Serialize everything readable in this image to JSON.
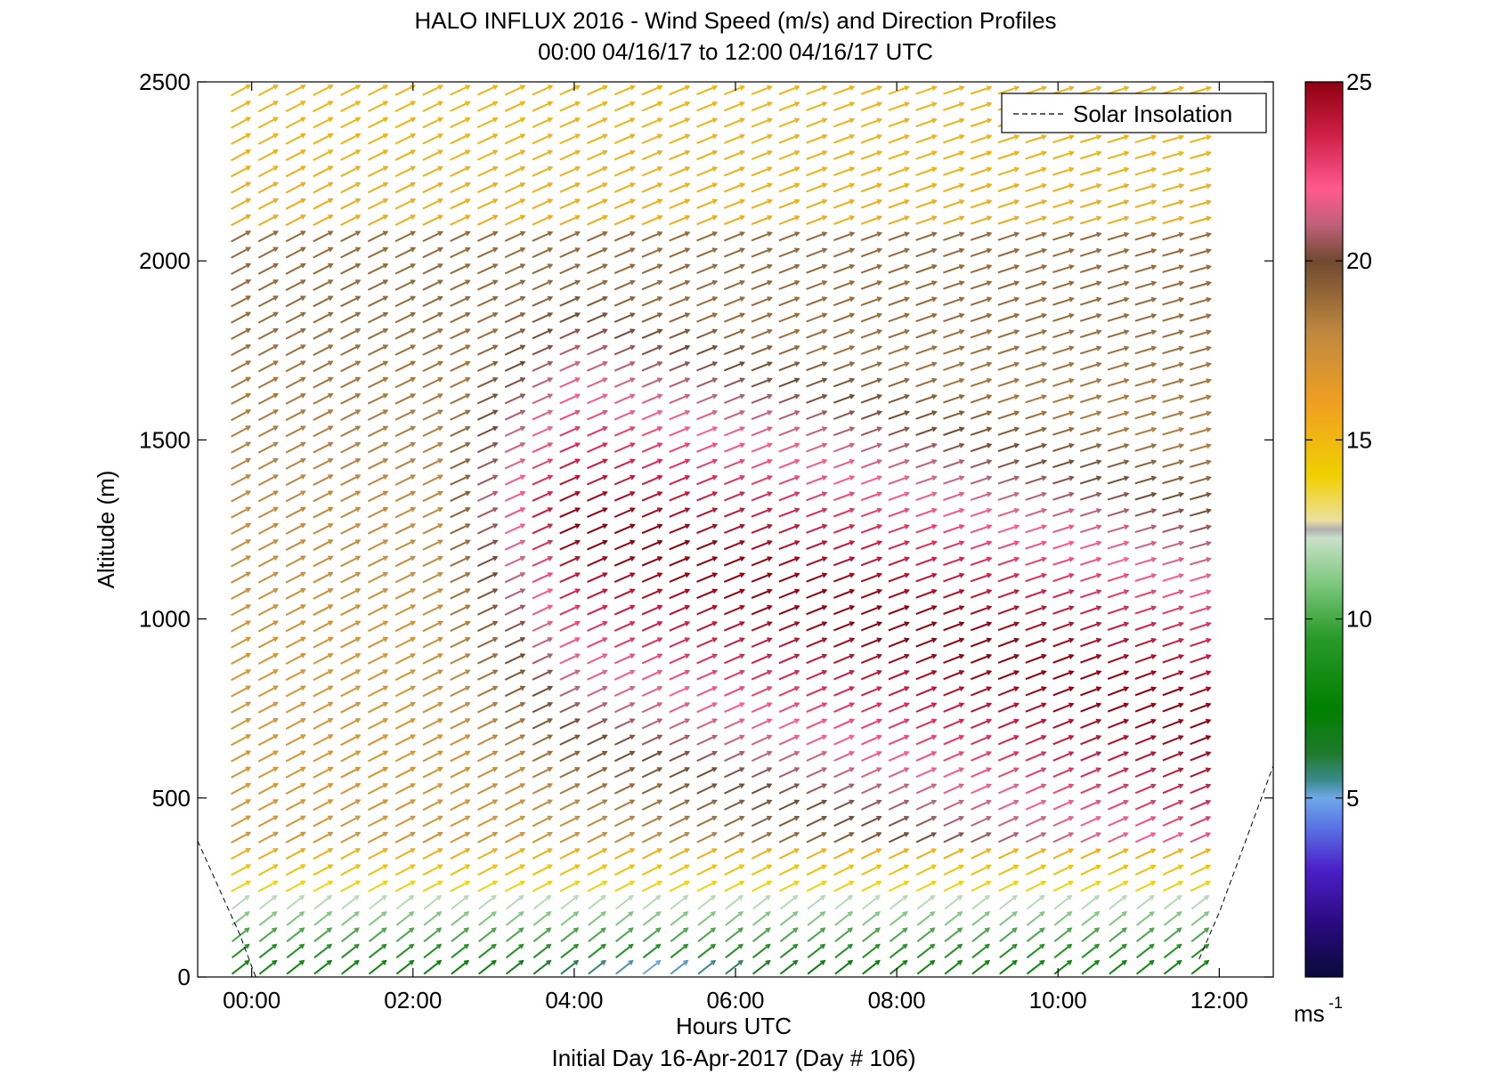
{
  "chart_data": {
    "type": "quiver",
    "title": "HALO INFLUX 2016 - Wind Speed (m/s) and Direction Profiles",
    "subtitle": "00:00 04/16/17 to 12:00 04/16/17  UTC",
    "xlabel": "Hours UTC",
    "xlabel2": "Initial Day 16-Apr-2017 (Day # 106)",
    "ylabel": "Altitude (m)",
    "xlim": [
      -0.67,
      12.67
    ],
    "ylim": [
      0,
      2500
    ],
    "x_ticks": [
      0,
      2,
      4,
      6,
      8,
      10,
      12
    ],
    "x_tick_labels": [
      "00:00",
      "02:00",
      "04:00",
      "06:00",
      "08:00",
      "10:00",
      "12:00"
    ],
    "y_ticks": [
      0,
      500,
      1000,
      1500,
      2000,
      2500
    ],
    "y_tick_labels": [
      "0",
      "500",
      "1000",
      "1500",
      "2000",
      "2500"
    ],
    "colorbar": {
      "min": 0,
      "max": 25,
      "ticks": [
        5,
        10,
        15,
        20,
        25
      ],
      "tick_labels": [
        "5",
        "10",
        "15",
        "20",
        "25"
      ],
      "unit": "ms",
      "unit_exponent": "-1"
    },
    "legend": {
      "position": "top-right",
      "entries": [
        {
          "name": "Solar Insolation",
          "style": "dashed"
        }
      ]
    },
    "solar_insolation": [
      {
        "x": -0.67,
        "y": 380
      },
      {
        "x": -0.15,
        "y": 120
      },
      {
        "x": 0.05,
        "y": 0
      }
    ],
    "solar_insolation_end": [
      {
        "x": 11.75,
        "y": 50
      },
      {
        "x": 12.0,
        "y": 180
      },
      {
        "x": 12.67,
        "y": 590
      }
    ],
    "wind_field": {
      "time_start": -0.15,
      "time_end": 11.75,
      "altitude_start": 25,
      "altitude_end": 2475,
      "time_columns": 36,
      "altitude_levels": 55,
      "note": "arrows pointing north-east; speed colors per colorbar"
    }
  }
}
